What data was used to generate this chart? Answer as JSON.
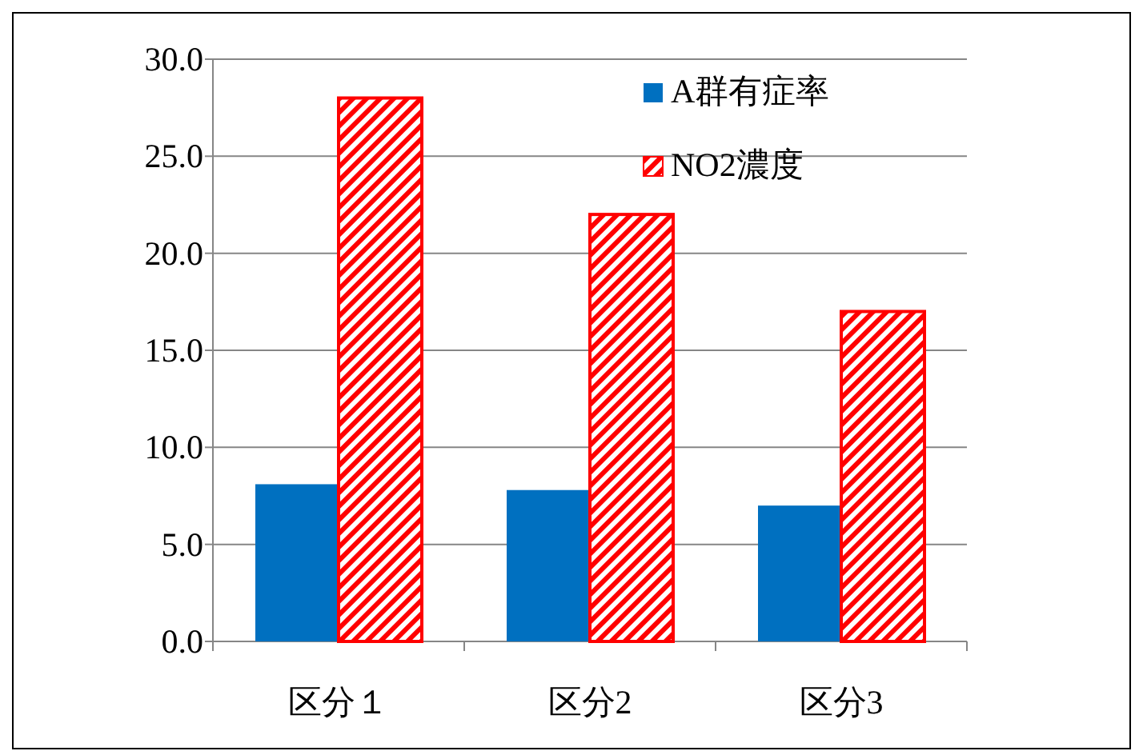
{
  "chart_data": {
    "type": "bar",
    "categories": [
      "区分１",
      "区分2",
      "区分3"
    ],
    "series": [
      {
        "name": "A群有症率",
        "color": "#0070c0",
        "values": [
          8.1,
          7.8,
          7.0
        ]
      },
      {
        "name": "NO2濃度",
        "color": "#ff0000",
        "values": [
          28.0,
          22.0,
          17.0
        ]
      }
    ],
    "ylim": [
      0,
      30
    ],
    "yticks": [
      {
        "value": 0,
        "label": "0.0"
      },
      {
        "value": 5,
        "label": "5.0"
      },
      {
        "value": 10,
        "label": "10.0"
      },
      {
        "value": 15,
        "label": "15.0"
      },
      {
        "value": 20,
        "label": "20.0"
      },
      {
        "value": 25,
        "label": "25.0"
      },
      {
        "value": 30,
        "label": "30.0"
      }
    ],
    "grid": "y",
    "legend": "top right"
  }
}
